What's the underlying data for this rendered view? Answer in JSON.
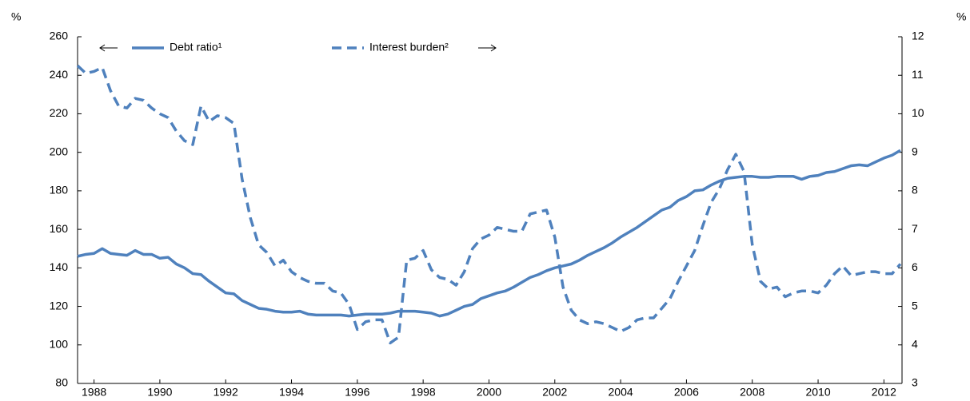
{
  "chart_data": {
    "type": "line",
    "y_label": "%",
    "y2_label": "%",
    "x": [
      1988,
      1988.25,
      1988.5,
      1988.75,
      1989,
      1989.25,
      1989.5,
      1989.75,
      1990,
      1990.25,
      1990.5,
      1990.75,
      1991,
      1991.25,
      1991.5,
      1991.75,
      1992,
      1992.25,
      1992.5,
      1992.75,
      1993,
      1993.25,
      1993.5,
      1993.75,
      1994,
      1994.25,
      1994.5,
      1994.75,
      1995,
      1995.25,
      1995.5,
      1995.75,
      1996,
      1996.25,
      1996.5,
      1996.75,
      1997,
      1997.25,
      1997.5,
      1997.75,
      1998,
      1998.25,
      1998.5,
      1998.75,
      1999,
      1999.25,
      1999.5,
      1999.75,
      2000,
      2000.25,
      2000.5,
      2000.75,
      2001,
      2001.25,
      2001.5,
      2001.75,
      2002,
      2002.25,
      2002.5,
      2002.75,
      2003,
      2003.25,
      2003.5,
      2003.75,
      2004,
      2004.25,
      2004.5,
      2004.75,
      2005,
      2005.25,
      2005.5,
      2005.75,
      2006,
      2006.25,
      2006.5,
      2006.75,
      2007,
      2007.25,
      2007.5,
      2007.75,
      2008,
      2008.25,
      2008.5,
      2008.75,
      2009,
      2009.25,
      2009.5,
      2009.75,
      2010,
      2010.25,
      2010.5,
      2010.75,
      2011,
      2011.25,
      2011.5,
      2011.75,
      2012,
      2012.25,
      2012.5,
      2012.75,
      2013
    ],
    "series": [
      {
        "name": "Debt ratio¹",
        "color": "#4f81bd",
        "dashed": false,
        "axis": "y",
        "values": [
          146,
          147,
          147.5,
          150,
          147.5,
          147,
          146.5,
          149,
          147,
          147,
          145,
          145.5,
          142,
          140,
          137,
          136.5,
          133,
          130,
          127,
          126.5,
          123,
          121,
          119,
          118.5,
          117.5,
          117,
          117,
          117.5,
          116,
          115.5,
          115.5,
          115.5,
          115.5,
          115,
          115.5,
          116,
          116,
          116,
          116.5,
          117.5,
          117.5,
          117.5,
          117,
          116.5,
          115,
          116,
          118,
          120,
          121,
          124,
          125.5,
          127,
          128,
          130,
          132.5,
          135,
          136.5,
          138.5,
          140,
          141,
          142,
          144,
          146.5,
          148.5,
          150.5,
          153,
          156,
          158.5,
          161,
          164,
          167,
          170,
          171.5,
          175,
          177,
          180,
          180.5,
          183,
          185,
          186.5,
          187,
          187.5,
          187.5,
          187,
          187,
          187.5,
          187.5,
          187.5,
          186,
          187.5,
          188,
          189.5,
          190,
          191.5,
          193,
          193.5,
          193,
          195,
          197,
          198.5,
          201
        ]
      },
      {
        "name": "Interest burden²",
        "color": "#4f81bd",
        "dashed": true,
        "axis": "y2",
        "values": [
          11.25,
          11.05,
          11.1,
          11.2,
          10.6,
          10.2,
          10.15,
          10.4,
          10.35,
          10.15,
          10.0,
          9.9,
          9.55,
          9.3,
          9.2,
          10.2,
          9.8,
          9.95,
          9.9,
          9.75,
          8.3,
          7.3,
          6.6,
          6.4,
          6.05,
          6.2,
          5.9,
          5.75,
          5.65,
          5.6,
          5.6,
          5.4,
          5.35,
          5.05,
          4.4,
          4.6,
          4.65,
          4.65,
          4.05,
          4.2,
          6.2,
          6.25,
          6.45,
          5.95,
          5.75,
          5.7,
          5.55,
          5.9,
          6.5,
          6.75,
          6.85,
          7.05,
          7.0,
          6.95,
          6.95,
          7.4,
          7.45,
          7.5,
          6.8,
          5.5,
          4.9,
          4.65,
          4.55,
          4.6,
          4.55,
          4.45,
          4.35,
          4.45,
          4.65,
          4.7,
          4.7,
          4.95,
          5.2,
          5.65,
          6.05,
          6.45,
          7.1,
          7.7,
          8.05,
          8.55,
          8.95,
          8.5,
          6.6,
          5.65,
          5.45,
          5.5,
          5.25,
          5.35,
          5.4,
          5.4,
          5.35,
          5.55,
          5.85,
          6.05,
          5.8,
          5.85,
          5.9,
          5.9,
          5.85,
          5.85,
          6.1
        ]
      }
    ],
    "xlim": [
      1988,
      2013.05
    ],
    "xticks": [
      {
        "value": 1988.5,
        "label": "1988"
      },
      {
        "value": 1990.5,
        "label": "1990"
      },
      {
        "value": 1992.5,
        "label": "1992"
      },
      {
        "value": 1994.5,
        "label": "1994"
      },
      {
        "value": 1996.5,
        "label": "1996"
      },
      {
        "value": 1998.5,
        "label": "1998"
      },
      {
        "value": 2000.5,
        "label": "2000"
      },
      {
        "value": 2002.5,
        "label": "2002"
      },
      {
        "value": 2004.5,
        "label": "2004"
      },
      {
        "value": 2006.5,
        "label": "2006"
      },
      {
        "value": 2008.5,
        "label": "2008"
      },
      {
        "value": 2010.5,
        "label": "2010"
      },
      {
        "value": 2012.5,
        "label": "2012"
      }
    ],
    "ylim": [
      80,
      260
    ],
    "yticks": [
      80,
      100,
      120,
      140,
      160,
      180,
      200,
      220,
      240,
      260
    ],
    "y2lim": [
      3,
      12
    ],
    "y2ticks": [
      3,
      4,
      5,
      6,
      7,
      8,
      9,
      10,
      11,
      12
    ],
    "grid": false
  }
}
